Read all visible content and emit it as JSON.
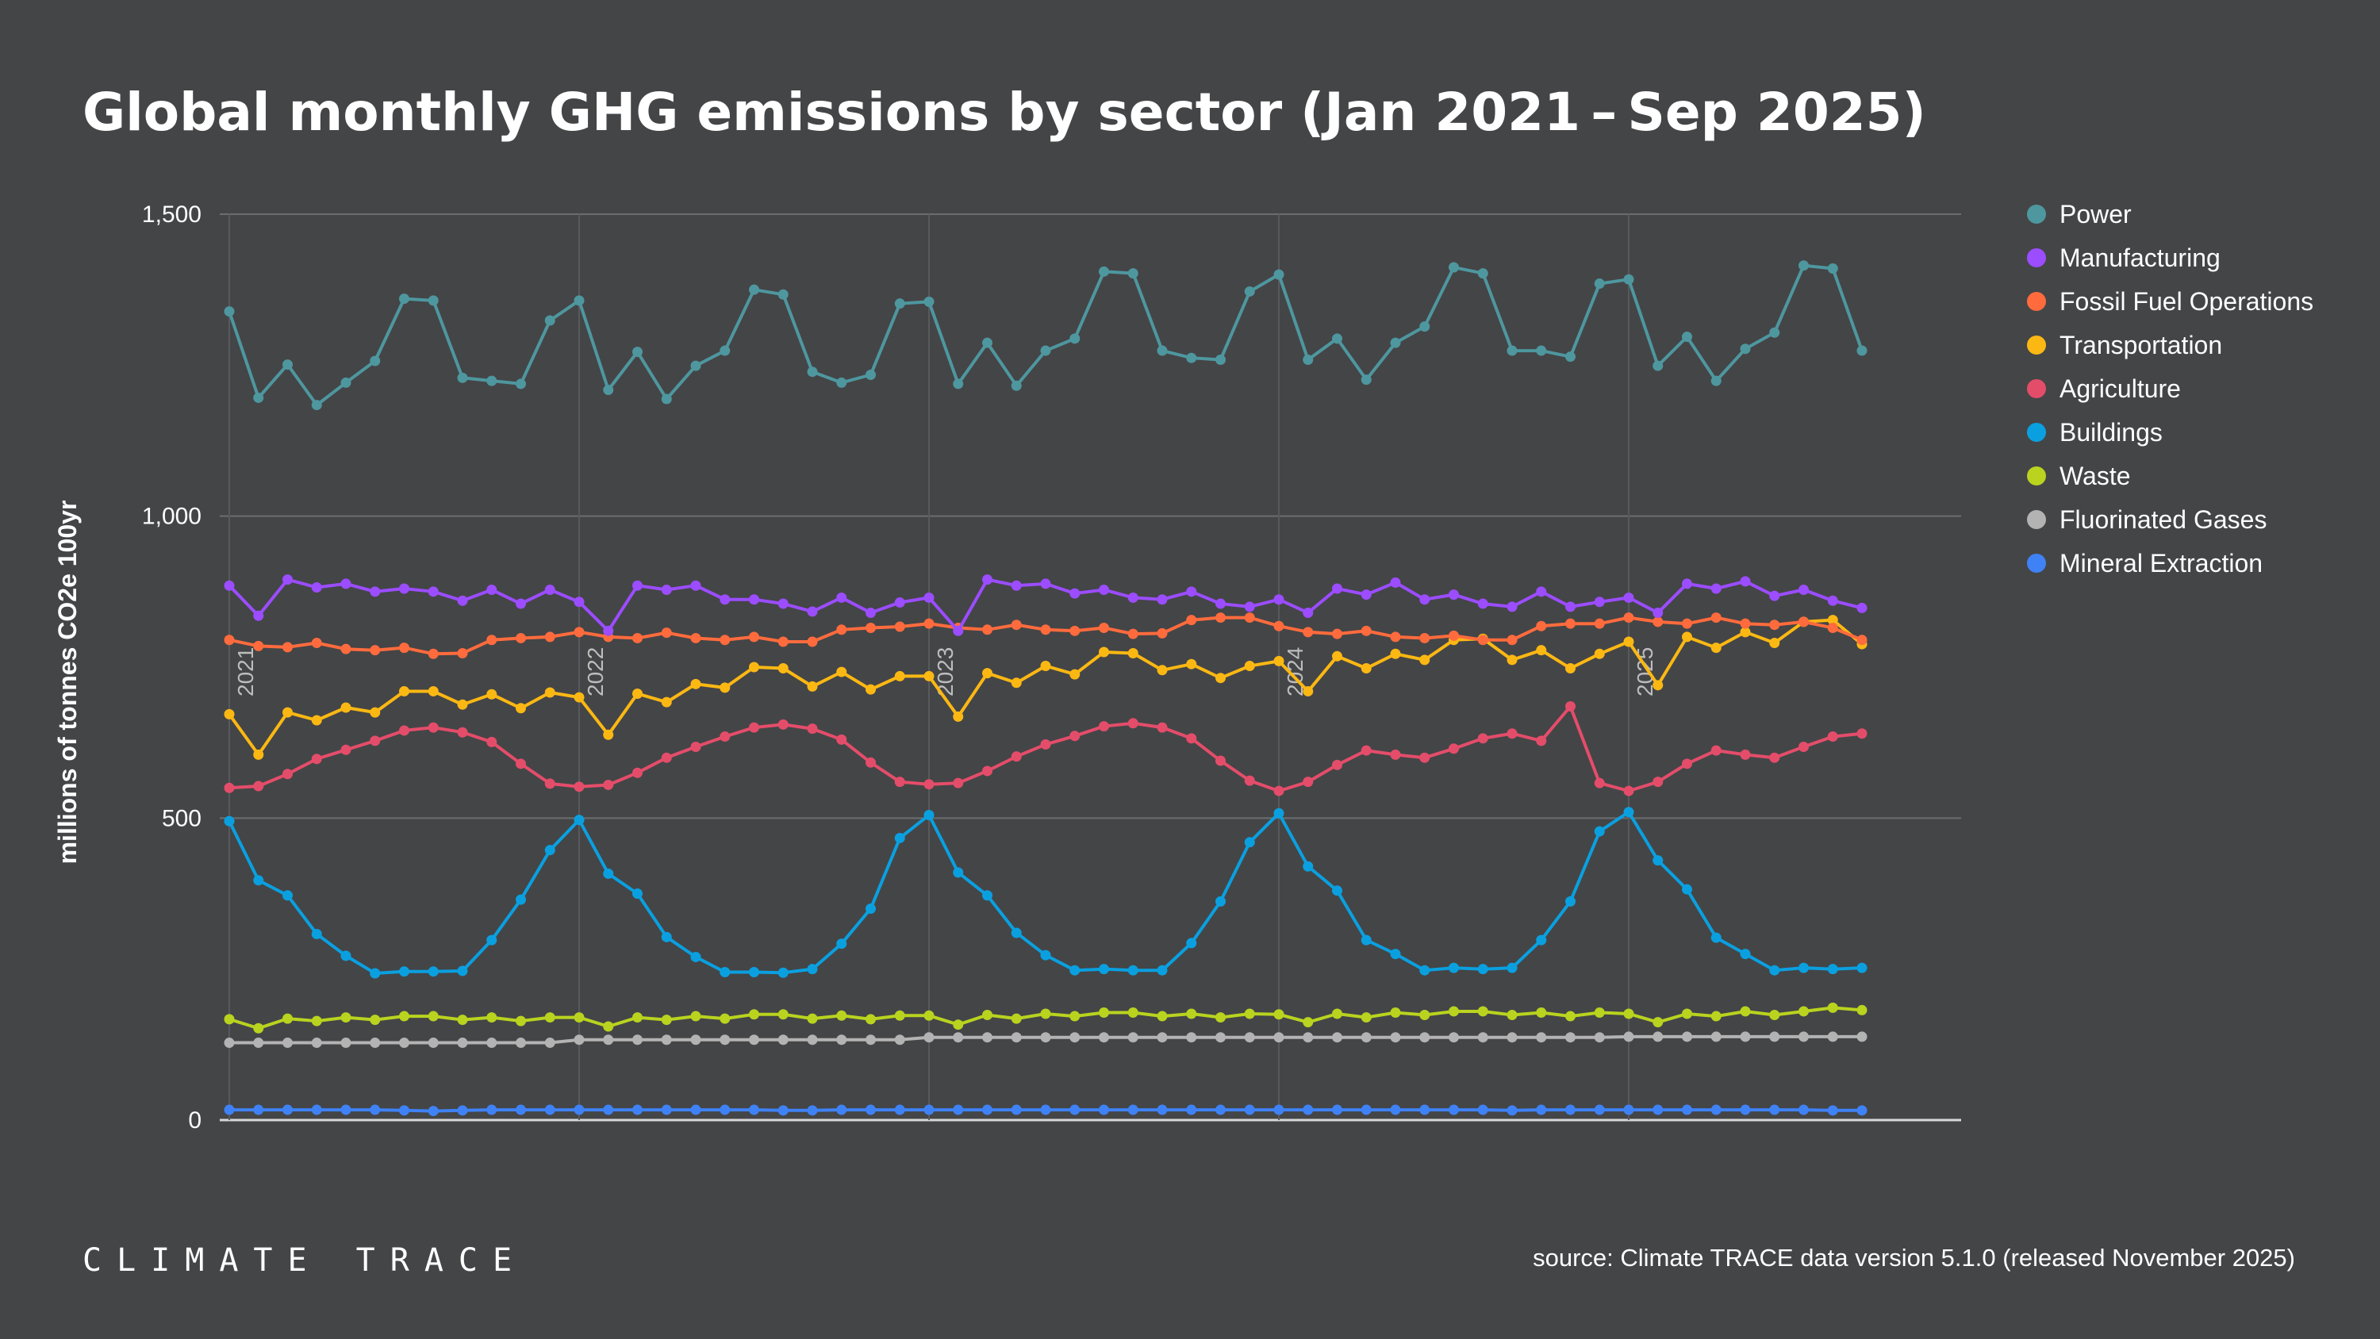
{
  "chart_data": {
    "type": "line",
    "title": "Global monthly GHG emissions by sector (Jan 2021 – Sep 2025)",
    "ylabel": "millions of tonnes CO2e 100yr",
    "xlabel": "",
    "x_start": "2021-01",
    "x_end": "2025-09",
    "x_ticks": [
      "2021",
      "2022",
      "2023",
      "2024",
      "2025"
    ],
    "y_ticks": [
      "0",
      "500",
      "1,000",
      "1,500"
    ],
    "ylim": [
      0,
      1500
    ],
    "grid": true,
    "legend_position": "right",
    "series": [
      {
        "name": "Power",
        "color": "#4e979f",
        "values": [
          1339,
          1196,
          1251,
          1184,
          1221,
          1257,
          1360,
          1357,
          1229,
          1224,
          1219,
          1324,
          1357,
          1209,
          1272,
          1194,
          1249,
          1274,
          1375,
          1367,
          1239,
          1221,
          1234,
          1352,
          1355,
          1219,
          1287,
          1216,
          1274,
          1294,
          1405,
          1402,
          1274,
          1262,
          1259,
          1372,
          1400,
          1259,
          1294,
          1226,
          1287,
          1314,
          1412,
          1402,
          1274,
          1274,
          1264,
          1385,
          1392,
          1249,
          1297,
          1224,
          1277,
          1304,
          1415,
          1410,
          1274
        ]
      },
      {
        "name": "Manufacturing",
        "color": "#9b4dff",
        "values": [
          885,
          835,
          895,
          882,
          888,
          875,
          880,
          875,
          860,
          878,
          855,
          878,
          858,
          810,
          885,
          878,
          885,
          862,
          862,
          855,
          842,
          865,
          840,
          857,
          865,
          810,
          895,
          885,
          888,
          872,
          878,
          865,
          862,
          875,
          855,
          850,
          862,
          840,
          880,
          870,
          890,
          862,
          870,
          855,
          850,
          875,
          850,
          858,
          865,
          840,
          888,
          880,
          892,
          868,
          878,
          860,
          848
        ]
      },
      {
        "name": "Fossil Fuel Operations",
        "color": "#ff6b3d",
        "values": [
          795,
          785,
          783,
          790,
          780,
          778,
          782,
          772,
          773,
          795,
          798,
          800,
          808,
          800,
          798,
          807,
          798,
          795,
          800,
          792,
          792,
          812,
          815,
          817,
          822,
          815,
          812,
          820,
          812,
          810,
          815,
          805,
          806,
          828,
          832,
          832,
          818,
          808,
          805,
          810,
          800,
          798,
          802,
          795,
          795,
          818,
          822,
          822,
          832,
          825,
          822,
          832,
          822,
          820,
          825,
          815,
          795
        ]
      },
      {
        "name": "Transportation",
        "color": "#fbb813",
        "values": [
          672,
          605,
          675,
          662,
          683,
          675,
          710,
          710,
          688,
          705,
          682,
          708,
          700,
          638,
          706,
          692,
          722,
          716,
          750,
          748,
          718,
          742,
          713,
          735,
          735,
          668,
          740,
          724,
          752,
          738,
          775,
          773,
          745,
          755,
          732,
          752,
          760,
          710,
          768,
          748,
          772,
          762,
          795,
          797,
          762,
          778,
          748,
          772,
          792,
          720,
          800,
          782,
          808,
          790,
          825,
          828,
          788
        ]
      },
      {
        "name": "Agriculture",
        "color": "#e44d6a",
        "values": [
          550,
          553,
          573,
          598,
          613,
          628,
          645,
          650,
          642,
          626,
          590,
          557,
          552,
          555,
          575,
          600,
          618,
          635,
          650,
          655,
          648,
          630,
          592,
          560,
          556,
          558,
          578,
          602,
          622,
          636,
          652,
          657,
          650,
          632,
          595,
          562,
          545,
          560,
          588,
          612,
          605,
          600,
          615,
          632,
          640,
          628,
          685,
          558,
          545,
          560,
          590,
          612,
          605,
          600,
          618,
          635,
          640
        ]
      },
      {
        "name": "Buildings",
        "color": "#0aa0e0",
        "values": [
          495,
          397,
          372,
          308,
          272,
          243,
          246,
          246,
          247,
          298,
          365,
          447,
          497,
          408,
          375,
          303,
          270,
          245,
          245,
          244,
          250,
          292,
          350,
          467,
          505,
          410,
          372,
          310,
          273,
          248,
          250,
          248,
          248,
          293,
          362,
          460,
          508,
          420,
          380,
          298,
          275,
          248,
          252,
          250,
          252,
          298,
          362,
          478,
          510,
          430,
          382,
          302,
          275,
          248,
          252,
          250,
          252
        ]
      },
      {
        "name": "Waste",
        "color": "#b9d31f",
        "values": [
          167,
          152,
          168,
          164,
          170,
          166,
          172,
          172,
          166,
          170,
          164,
          170,
          170,
          155,
          170,
          166,
          172,
          168,
          175,
          175,
          168,
          173,
          167,
          173,
          173,
          158,
          174,
          168,
          176,
          172,
          178,
          178,
          172,
          176,
          170,
          176,
          175,
          162,
          176,
          170,
          178,
          174,
          180,
          180,
          174,
          178,
          172,
          178,
          176,
          162,
          176,
          172,
          180,
          174,
          180,
          186,
          182
        ]
      },
      {
        "name": "Fluorinated Gases",
        "color": "#b3b3b3",
        "values": [
          128,
          128,
          128,
          128,
          128,
          128,
          128,
          128,
          128,
          128,
          128,
          128,
          133,
          133,
          133,
          133,
          133,
          133,
          133,
          133,
          133,
          133,
          133,
          133,
          137,
          137,
          137,
          137,
          137,
          137,
          137,
          137,
          137,
          137,
          137,
          137,
          137,
          137,
          137,
          137,
          137,
          137,
          137,
          137,
          137,
          137,
          137,
          137,
          138,
          138,
          138,
          138,
          138,
          138,
          138,
          138,
          138
        ]
      },
      {
        "name": "Mineral Extraction",
        "color": "#3f82f5",
        "values": [
          17,
          17,
          17,
          17,
          17,
          17,
          16,
          15,
          16,
          17,
          17,
          17,
          17,
          17,
          17,
          17,
          17,
          17,
          17,
          16,
          16,
          17,
          17,
          17,
          17,
          17,
          17,
          17,
          17,
          17,
          17,
          17,
          17,
          17,
          17,
          17,
          17,
          17,
          17,
          17,
          17,
          17,
          17,
          17,
          16,
          17,
          17,
          17,
          17,
          17,
          17,
          17,
          17,
          17,
          17,
          16,
          16
        ]
      }
    ]
  },
  "footer": {
    "logo": "CLIMATE TRACE",
    "source": "source: Climate TRACE data version 5.1.0 (released November 2025)"
  }
}
